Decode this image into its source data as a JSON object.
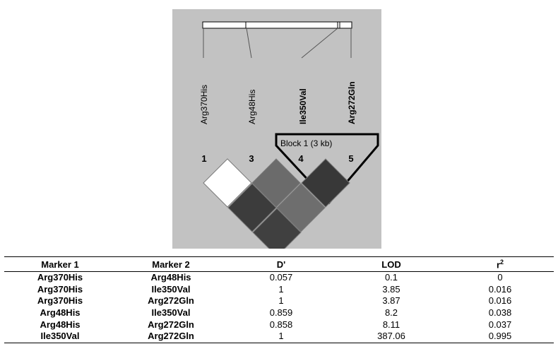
{
  "ld_plot": {
    "markers": [
      {
        "name": "Arg370His",
        "bold": false
      },
      {
        "name": "Arg48His",
        "bold": false
      },
      {
        "name": "Ile350Val",
        "bold": true
      },
      {
        "name": "Arg272Gln",
        "bold": true
      }
    ],
    "marker_numbers": [
      "1",
      "3",
      "4",
      "5"
    ],
    "block_label": "Block 1 (3 kb)",
    "cells": [
      {
        "pair": [
          "1",
          "3"
        ],
        "shade": "#ffffff"
      },
      {
        "pair": [
          "3",
          "4"
        ],
        "shade": "#6b6b6b"
      },
      {
        "pair": [
          "4",
          "5"
        ],
        "shade": "#383838"
      },
      {
        "pair": [
          "1",
          "4"
        ],
        "shade": "#3c3c3c"
      },
      {
        "pair": [
          "3",
          "5"
        ],
        "shade": "#6e6e6e"
      },
      {
        "pair": [
          "1",
          "5"
        ],
        "shade": "#404040"
      }
    ]
  },
  "table": {
    "headers": [
      "Marker 1",
      "Marker 2",
      "D'",
      "LOD",
      "r"
    ],
    "r_superscript": "2",
    "rows": [
      [
        "Arg370His",
        "Arg48His",
        "0.057",
        "0.1",
        "0"
      ],
      [
        "Arg370His",
        "Ile350Val",
        "1",
        "3.85",
        "0.016"
      ],
      [
        "Arg370His",
        "Arg272Gln",
        "1",
        "3.87",
        "0.016"
      ],
      [
        "Arg48His",
        "Ile350Val",
        "0.859",
        "8.2",
        "0.038"
      ],
      [
        "Arg48His",
        "Arg272Gln",
        "0.858",
        "8.11",
        "0.037"
      ],
      [
        "Ile350Val",
        "Arg272Gln",
        "1",
        "387.06",
        "0.995"
      ]
    ]
  }
}
